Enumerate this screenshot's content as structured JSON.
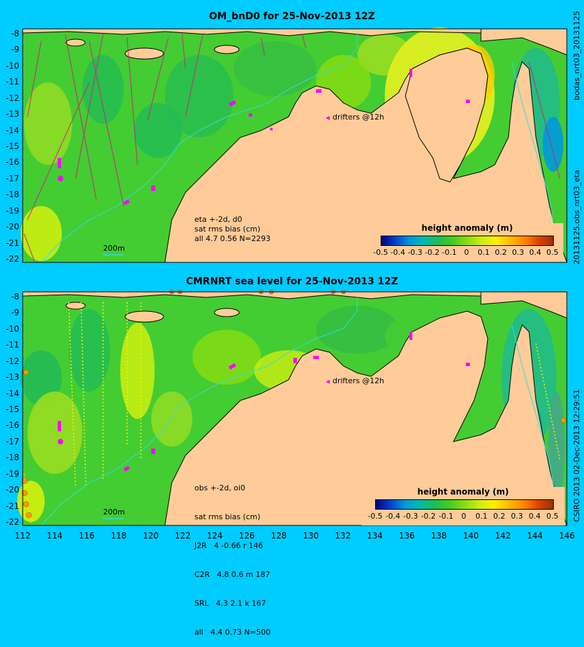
{
  "panels": [
    {
      "title": "OM_bnD0 for 25-Nov-2013 12Z",
      "side_label_top": "bodas_nrt03_20131125",
      "side_label_bottom": "20131125.obs_nrt03_eta",
      "info_lines": [
        "eta +-2d, d0",
        "sat rms bias (cm)",
        "all 4.7 0.56 N=2293"
      ],
      "drifters_label": "drifters @12h",
      "scale_label": "200m",
      "colorbar_title": "height anomaly (m)"
    },
    {
      "title": "CMRNRT sea level  for 25-Nov-2013 12Z",
      "side_label_top": "",
      "side_label_bottom": "CSIRO 2013  02-Dec-2013 12:29:51",
      "info_lines": [
        "obs +-2d, oi0",
        "sat rms bias (cm)",
        "J2R   4 -0.66 r 146",
        "C2R   4.8 0.6 m 187",
        "SRL   4.3 2.1 k 167",
        "all   4.4 0.73 N=500"
      ],
      "drifters_label": "drifters @12h",
      "scale_label": "200m",
      "colorbar_title": "height anomaly (m)"
    }
  ],
  "y_ticks": [
    "-8",
    "-9",
    "-10",
    "-11",
    "-12",
    "-13",
    "-14",
    "-15",
    "-16",
    "-17",
    "-18",
    "-19",
    "-20",
    "-21",
    "-22"
  ],
  "x_ticks": [
    "112",
    "114",
    "116",
    "118",
    "120",
    "122",
    "124",
    "126",
    "128",
    "130",
    "132",
    "134",
    "136",
    "138",
    "140",
    "142",
    "144",
    "146"
  ],
  "colorbar_ticks": [
    "-0.5",
    "-0.4",
    "-0.3",
    "-0.2",
    "-0.1",
    "0",
    "0.1",
    "0.2",
    "0.3",
    "0.4",
    "0.5"
  ],
  "colorbar_colors": [
    "#00007f",
    "#0044cc",
    "#0099dd",
    "#00bbaa",
    "#22bb55",
    "#44cc22",
    "#88dd11",
    "#ccee11",
    "#ffee00",
    "#ffbb00",
    "#ff8800",
    "#dd4400",
    "#993300"
  ],
  "colors": {
    "background": "#00ccff",
    "land": "#ffcc99",
    "ocean_base": "#44cc33",
    "track": "#cc2277",
    "drifter": "#ff00ff"
  }
}
